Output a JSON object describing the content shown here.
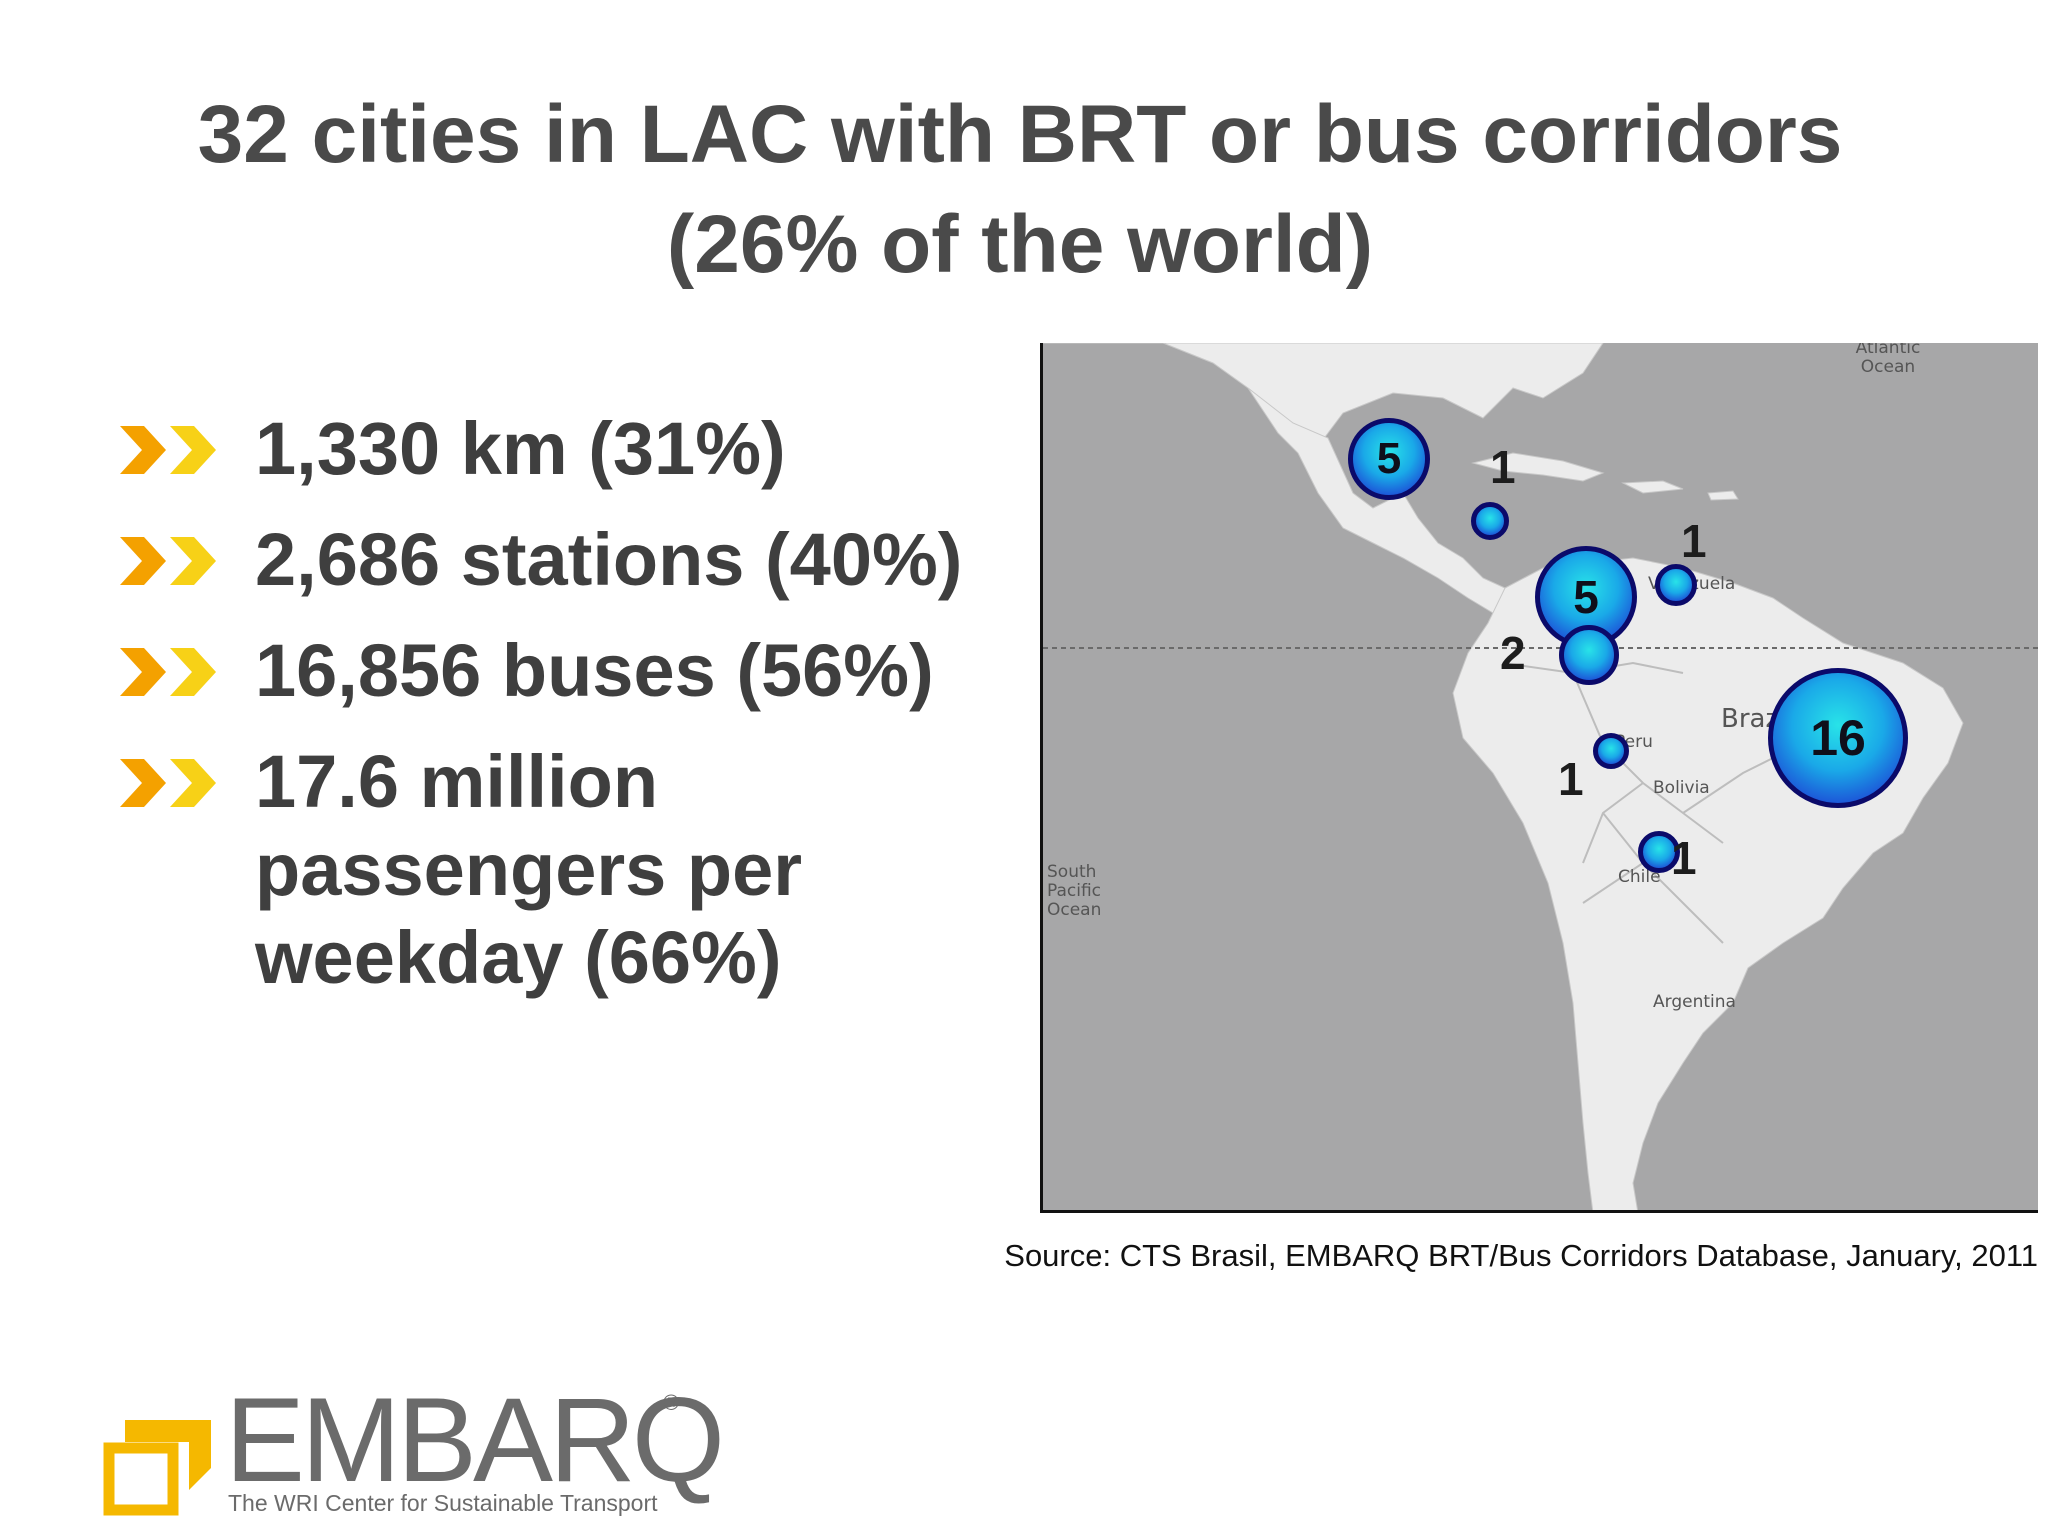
{
  "title": {
    "line1": "32 cities in LAC with BRT or bus corridors",
    "line2": "(26% of the world)"
  },
  "bullets": [
    {
      "text": "1,330 km  (31%)",
      "icon": "double-chevron-icon"
    },
    {
      "text": "2,686 stations (40%)",
      "icon": "double-chevron-icon"
    },
    {
      "text": "16,856 buses (56%)",
      "icon": "double-chevron-icon"
    },
    {
      "text": "17.6 million passengers per weekday (66%)",
      "icon": "double-chevron-icon"
    }
  ],
  "map": {
    "labels": {
      "atlantic": "Atlantic Ocean",
      "pacific": "South Pacific Ocean",
      "brazil": "Brazil",
      "bolivia": "Bolivia",
      "argentina": "Argentina",
      "chile": "Chile",
      "peru": "Peru",
      "venezuela": "Venezuela"
    },
    "markers": [
      {
        "region": "Mexico",
        "count": "5"
      },
      {
        "region": "Guatemala",
        "count": "1"
      },
      {
        "region": "Colombia",
        "count": "5"
      },
      {
        "region": "Venezuela",
        "count": "1"
      },
      {
        "region": "Ecuador",
        "count": "2"
      },
      {
        "region": "Peru",
        "count": "1"
      },
      {
        "region": "Brazil",
        "count": "16"
      },
      {
        "region": "Chile",
        "count": "1"
      }
    ]
  },
  "source": "Source: CTS Brasil, EMBARQ BRT/Bus Corridors Database, January, 2011",
  "logo": {
    "name": "EMBARQ",
    "registered": "®",
    "tagline": "The WRI Center for Sustainable Transport"
  },
  "colors": {
    "title": "#4a4a4a",
    "chevron_orange": "#f4a100",
    "chevron_yellow": "#f7d117",
    "ocean": "#a7a7a8",
    "land": "#ececec",
    "bubble_border": "#0b0a6a",
    "logo_yellow": "#f5b800"
  }
}
